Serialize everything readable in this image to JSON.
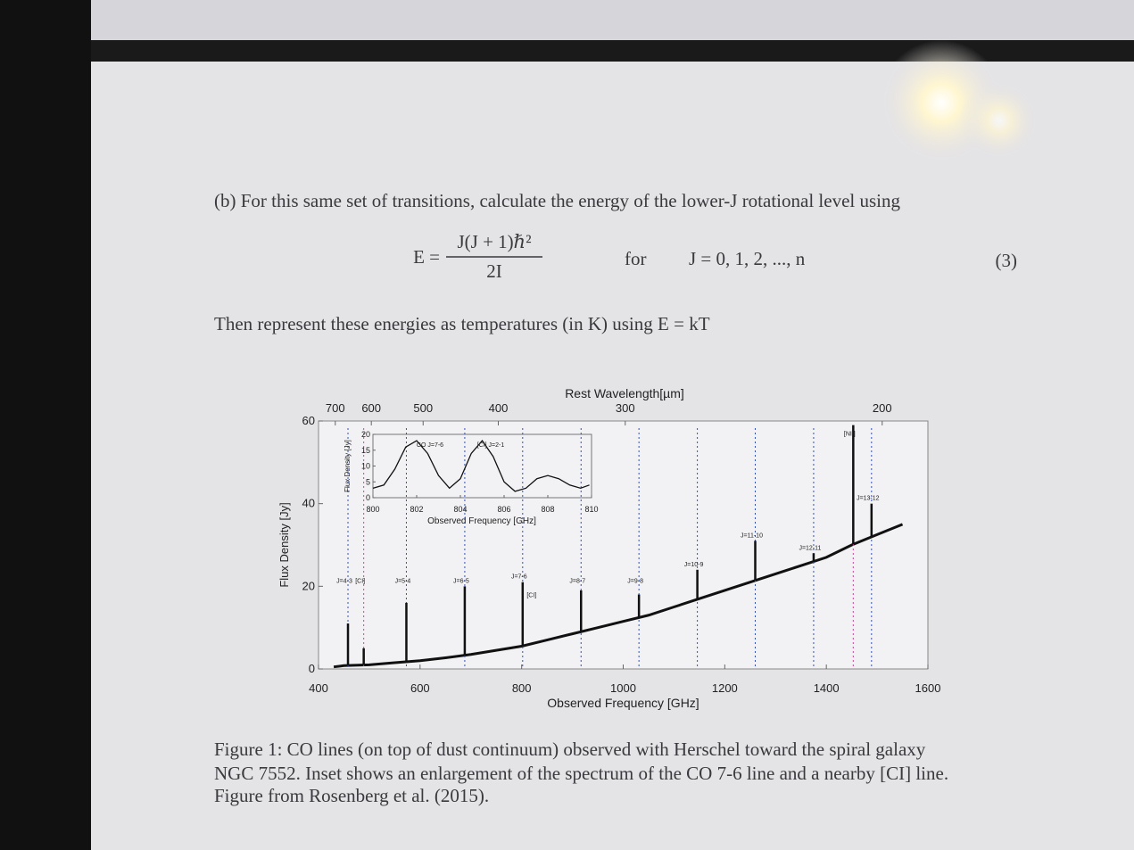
{
  "part_b": "(b) For this same set of transitions, calculate the energy of the lower-J rotational level using",
  "equation": {
    "lhs": "E =",
    "numerator": "J(J + 1)ℏ²",
    "denominator": "2I",
    "for": "for",
    "condition": "J = 0, 1, 2, ..., n",
    "number": "(3)"
  },
  "then": "Then represent these energies as temperatures (in K) using E = kT",
  "chart_data": {
    "type": "line",
    "x_label": "Observed Frequency [GHz]",
    "y_label": "Flux Density [Jy]",
    "top_label": "Rest Wavelength[µm]",
    "xlim": [
      400,
      1600
    ],
    "xticks": [
      400,
      600,
      800,
      1000,
      1200,
      1400,
      1600
    ],
    "ylim": [
      0,
      60
    ],
    "yticks": [
      0,
      20,
      40,
      60
    ],
    "top_ticks": [
      {
        "value": 433,
        "label": "700"
      },
      {
        "value": 504,
        "label": "600"
      },
      {
        "value": 606,
        "label": "500"
      },
      {
        "value": 754,
        "label": "400"
      },
      {
        "value": 1004,
        "label": "300"
      },
      {
        "value": 1510,
        "label": "200"
      }
    ],
    "continuum": {
      "color": "#111111",
      "x": [
        430,
        450,
        500,
        550,
        600,
        650,
        700,
        750,
        800,
        850,
        900,
        950,
        1000,
        1050,
        1100,
        1150,
        1200,
        1250,
        1300,
        1350,
        1400,
        1450,
        1500,
        1550
      ],
      "values": [
        0.5,
        0.8,
        1,
        1.5,
        2,
        2.7,
        3.5,
        4.5,
        5.5,
        7,
        8.5,
        10,
        11.5,
        13,
        15,
        17,
        19,
        21,
        23,
        25,
        27,
        30,
        32.5,
        35
      ]
    },
    "lines": [
      {
        "label": "J=4-3",
        "x": 458,
        "peak": 11,
        "color": "#3050c0"
      },
      {
        "label": "[CI]",
        "x": 489,
        "peak": 5,
        "color": "#d040a0"
      },
      {
        "label": "J=5-4",
        "x": 573,
        "peak": 16,
        "color": "#3050c0"
      },
      {
        "label": "J=6-5",
        "x": 688,
        "peak": 20,
        "color": "#3050c0"
      },
      {
        "label": "J=7-6",
        "x": 802,
        "peak": 21,
        "color": "#3050c0"
      },
      {
        "label": "J=8-7",
        "x": 917,
        "peak": 19,
        "color": "#3050c0"
      },
      {
        "label": "J=9-8",
        "x": 1031,
        "peak": 18,
        "color": "#3050c0"
      },
      {
        "label": "J=10-9",
        "x": 1146,
        "peak": 24,
        "color": "#3050c0"
      },
      {
        "label": "J=11-10",
        "x": 1260,
        "peak": 31,
        "color": "#3050c0"
      },
      {
        "label": "J=12-11",
        "x": 1375,
        "peak": 28,
        "color": "#3050c0"
      },
      {
        "label": "[NII]",
        "x": 1453,
        "peak": 59,
        "color": "#d040a0"
      },
      {
        "label": "J=13-12",
        "x": 1489,
        "peak": 40,
        "color": "#3050c0"
      }
    ],
    "ci_label": "[CI]",
    "inset": {
      "x_label": "Observed Frequency [GHz]",
      "y_label": "Flux Density [Jy]",
      "xlim": [
        800,
        810
      ],
      "xticks": [
        800,
        802,
        804,
        806,
        808,
        810
      ],
      "ylim": [
        0,
        20
      ],
      "yticks": [
        0,
        5,
        10,
        15,
        20
      ],
      "labels": [
        "CO J=7-6",
        "[CI] J=2-1"
      ],
      "x": [
        800,
        800.5,
        801,
        801.5,
        802,
        802.5,
        803,
        803.5,
        804,
        804.5,
        805,
        805.5,
        806,
        806.5,
        807,
        807.5,
        808,
        808.5,
        809,
        809.5,
        809.9
      ],
      "values": [
        3,
        4,
        9,
        16,
        18,
        14,
        7,
        3,
        6,
        14,
        18,
        13,
        5,
        2,
        3,
        6,
        7,
        6,
        4,
        3,
        4
      ]
    }
  },
  "caption": [
    "Figure 1: CO lines (on top of dust continuum) observed with Herschel toward the spiral galaxy",
    "NGC 7552. Inset shows an enlargement of the spectrum of the CO 7-6 line and a nearby [CI] line.",
    "Figure from Rosenberg et al. (2015)."
  ]
}
